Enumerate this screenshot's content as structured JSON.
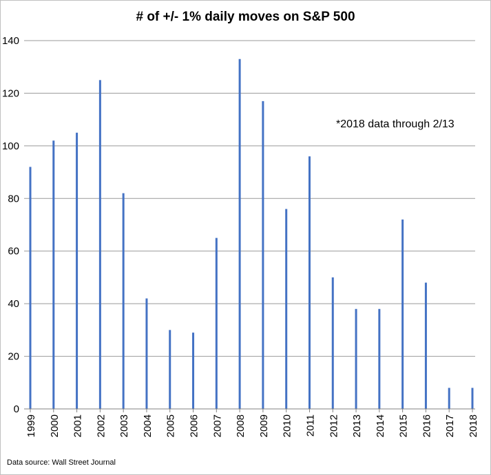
{
  "chart_data": {
    "type": "bar",
    "title": "# of +/- 1% daily moves on S&P 500",
    "xlabel": "",
    "ylabel": "",
    "categories": [
      "1999",
      "2000",
      "2001",
      "2002",
      "2003",
      "2004",
      "2005",
      "2006",
      "2007",
      "2008",
      "2009",
      "2010",
      "2011",
      "2012",
      "2013",
      "2014",
      "2015",
      "2016",
      "2017",
      "2018"
    ],
    "values": [
      92,
      102,
      105,
      125,
      82,
      42,
      30,
      29,
      65,
      133,
      117,
      76,
      96,
      50,
      38,
      38,
      72,
      48,
      8,
      8
    ],
    "ylim": [
      0,
      140
    ],
    "yticks": [
      0,
      20,
      40,
      60,
      80,
      100,
      120,
      140
    ],
    "grid": true,
    "annotation": "*2018 data through  2/13",
    "source": "Data source: Wall Street Journal",
    "bar_color": "#4472c4",
    "grid_color": "#999999"
  }
}
